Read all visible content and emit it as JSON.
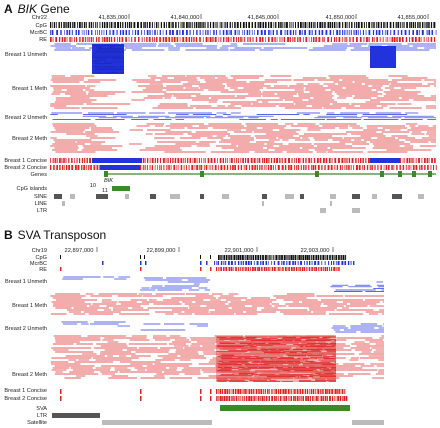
{
  "colors": {
    "unmeth": "#2233dd",
    "meth": "#dd2222",
    "gene": "#3a8a2a",
    "cpg": "#111111",
    "repeat_dark": "#555555",
    "repeat_light": "#bbbbbb"
  },
  "panel_a": {
    "letter": "A",
    "gene_italic": "BIK",
    "title_rest": "Gene",
    "chrom": "Chr22",
    "positions": [
      "41,835,000",
      "41,840,000",
      "41,845,000",
      "41,850,000",
      "41,855,000"
    ],
    "gene_label": "BIK",
    "small_labels": [
      "10",
      "11"
    ],
    "tracks": {
      "cpg": "CpG",
      "mcrbc": "McrBC",
      "re": "RE",
      "b1_unmeth": "Breast 1 Unmeth",
      "b1_meth": "Breast 1 Meth",
      "b2_unmeth": "Breast 2 Unmeth",
      "b2_meth": "Breast 2 Meth",
      "b1_concise": "Breast 1 Concise",
      "b2_concise": "Breast 2 Concise",
      "genes": "Genes",
      "cpg_islands": "CpG islands",
      "sine": "SINE",
      "line": "LINE",
      "ltr": "LTR"
    }
  },
  "panel_b": {
    "letter": "B",
    "title": "SVA Transposon",
    "chrom": "Chr19",
    "positions": [
      "22,897,000",
      "22,899,000",
      "22,901,000",
      "22,903,000"
    ],
    "tracks": {
      "cpg": "CpG",
      "mcrbc": "McrBC",
      "re": "RE",
      "b1_unmeth": "Breast 1 Unmeth",
      "b1_meth": "Breast 1 Meth",
      "b2_unmeth": "Breast 2 Unmeth",
      "b2_meth": "Breast 2 Meth",
      "b1_concise": "Breast 1 Concise",
      "b2_concise": "Breast 2 Concise",
      "sva": "SVA",
      "ltr": "LTR",
      "satellite": "Satellite"
    }
  }
}
